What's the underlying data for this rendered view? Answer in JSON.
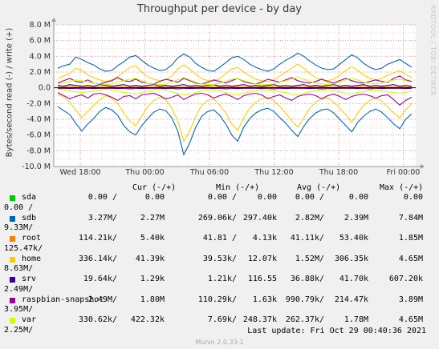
{
  "chart_data": {
    "type": "line",
    "title": "Throughput per device - by day",
    "ylabel": "Bytes/second read (-) / write (+)",
    "ylim": [
      -10,
      8
    ],
    "yunit": "M",
    "yticks": [
      "8.0 M",
      "6.0 M",
      "4.0 M",
      "2.0 M",
      "0.0",
      "-2.0 M",
      "-4.0 M",
      "-6.0 M",
      "-8.0 M",
      "-10.0 M"
    ],
    "xticks": [
      "Wed 18:00",
      "Thu 00:00",
      "Thu 06:00",
      "Thu 12:00",
      "Thu 18:00",
      "Fri 00:00"
    ],
    "grid": true,
    "legend_position": "bottom",
    "series": [
      {
        "name": "sda",
        "color": "#00cc00",
        "write": [
          0,
          0,
          0,
          0,
          0,
          0,
          0,
          0,
          0,
          0,
          0,
          0,
          0,
          0,
          0,
          0,
          0,
          0,
          0,
          0,
          0,
          0,
          0,
          0,
          0,
          0,
          0,
          0,
          0,
          0,
          0,
          0,
          0,
          0,
          0,
          0,
          0,
          0,
          0,
          0,
          0,
          0,
          0,
          0,
          0,
          0,
          0,
          0,
          0,
          0,
          0,
          0,
          0,
          0,
          0,
          0,
          0,
          0,
          0,
          0
        ],
        "read": [
          0,
          0,
          0,
          0,
          0,
          0,
          0,
          0,
          0,
          0,
          0,
          0,
          0,
          0,
          0,
          0,
          0,
          0,
          0,
          0,
          0,
          0,
          0,
          0,
          0,
          0,
          0,
          0,
          0,
          0,
          0,
          0,
          0,
          0,
          0,
          0,
          0,
          0,
          0,
          0,
          0,
          0,
          0,
          0,
          0,
          0,
          0,
          0,
          0,
          0,
          0,
          0,
          0,
          0,
          0,
          0,
          0,
          0,
          0,
          0
        ]
      },
      {
        "name": "sdb",
        "color": "#0066b3",
        "write": [
          2.5,
          2.8,
          3.0,
          3.9,
          3.6,
          3.2,
          2.9,
          2.4,
          2.1,
          2.2,
          2.8,
          3.3,
          3.9,
          4.1,
          3.5,
          2.9,
          2.5,
          2.2,
          2.3,
          2.9,
          3.8,
          4.3,
          3.9,
          3.1,
          2.6,
          2.2,
          2.1,
          2.6,
          3.2,
          3.8,
          4.0,
          3.6,
          3.0,
          2.6,
          2.3,
          2.1,
          2.4,
          3.0,
          3.5,
          3.9,
          4.4,
          4.0,
          3.4,
          2.9,
          2.5,
          2.3,
          2.4,
          3.0,
          3.6,
          4.2,
          3.8,
          3.1,
          2.6,
          2.3,
          2.5,
          3.0,
          3.3,
          3.6,
          3.1,
          2.6
        ],
        "read": [
          -2.4,
          -2.9,
          -3.4,
          -4.5,
          -5.5,
          -4.6,
          -3.9,
          -3.0,
          -2.5,
          -2.8,
          -3.5,
          -4.8,
          -5.6,
          -6.0,
          -4.8,
          -3.9,
          -3.1,
          -2.7,
          -2.9,
          -3.8,
          -5.5,
          -8.5,
          -7.0,
          -5.0,
          -3.6,
          -3.0,
          -2.8,
          -3.5,
          -4.6,
          -6.0,
          -6.8,
          -5.0,
          -3.9,
          -3.2,
          -2.8,
          -2.6,
          -3.0,
          -3.8,
          -4.5,
          -5.4,
          -6.2,
          -4.9,
          -3.9,
          -3.2,
          -2.8,
          -2.7,
          -3.2,
          -4.0,
          -4.8,
          -5.6,
          -4.4,
          -3.6,
          -3.0,
          -2.7,
          -3.1,
          -3.8,
          -4.6,
          -5.2,
          -4.0,
          -3.3
        ]
      },
      {
        "name": "root",
        "color": "#ff8000",
        "write": [
          0.1,
          0.1,
          0.2,
          0.1,
          0.1,
          0.1,
          0.1,
          0.1,
          0.1,
          0.1,
          0.2,
          0.1,
          0.1,
          0.1,
          0.1,
          0.1,
          0.1,
          0.1,
          0.2,
          0.1,
          0.1,
          0.1,
          0.1,
          0.1,
          0.1,
          0.1,
          0.2,
          0.1,
          0.1,
          0.1,
          0.1,
          0.1,
          0.1,
          0.1,
          0.1,
          0.2,
          0.1,
          0.1,
          0.1,
          0.1,
          0.1,
          0.1,
          0.1,
          0.2,
          0.1,
          0.1,
          0.1,
          0.1,
          0.1,
          0.1,
          0.1,
          0.2,
          0.1,
          0.1,
          0.1,
          0.1,
          0.1,
          0.1,
          0.1,
          0.1
        ],
        "read": [
          -0.1,
          -0.1,
          -0.1,
          -0.1,
          -0.2,
          -0.1,
          -0.1,
          -0.1,
          -0.1,
          -0.1,
          -0.1,
          -0.1,
          -0.2,
          -0.1,
          -0.1,
          -0.1,
          -0.1,
          -0.1,
          -0.1,
          -0.1,
          -0.2,
          -0.1,
          -0.1,
          -0.1,
          -0.1,
          -0.1,
          -0.1,
          -0.1,
          -0.2,
          -0.1,
          -0.1,
          -0.1,
          -0.1,
          -0.1,
          -0.1,
          -0.1,
          -0.2,
          -0.1,
          -0.1,
          -0.1,
          -0.1,
          -0.1,
          -0.1,
          -0.1,
          -0.2,
          -0.1,
          -0.1,
          -0.1,
          -0.1,
          -0.1,
          -0.1,
          -0.1,
          -0.2,
          -0.1,
          -0.1,
          -0.1,
          -0.1,
          -0.1,
          -0.1,
          -0.1
        ]
      },
      {
        "name": "home",
        "color": "#ffcc00",
        "write": [
          1.2,
          1.5,
          1.8,
          2.5,
          2.2,
          1.6,
          1.3,
          1.0,
          0.8,
          1.0,
          1.4,
          2.0,
          2.6,
          2.8,
          2.0,
          1.4,
          1.1,
          0.9,
          1.0,
          1.5,
          2.4,
          2.9,
          2.4,
          1.7,
          1.2,
          0.9,
          0.9,
          1.2,
          1.8,
          2.4,
          2.6,
          2.0,
          1.5,
          1.1,
          0.9,
          0.8,
          1.0,
          1.5,
          2.0,
          2.5,
          3.0,
          2.5,
          1.8,
          1.3,
          1.0,
          0.9,
          1.1,
          1.6,
          2.2,
          2.7,
          2.2,
          1.6,
          1.2,
          1.0,
          1.2,
          1.6,
          1.9,
          2.2,
          1.7,
          1.3
        ],
        "read": [
          -0.8,
          -1.2,
          -1.8,
          -2.8,
          -3.8,
          -3.0,
          -2.2,
          -1.5,
          -1.0,
          -1.3,
          -2.0,
          -3.2,
          -4.2,
          -4.8,
          -3.6,
          -2.4,
          -1.6,
          -1.2,
          -1.5,
          -2.6,
          -4.2,
          -6.8,
          -5.5,
          -3.6,
          -2.2,
          -1.6,
          -1.4,
          -2.2,
          -3.2,
          -4.6,
          -5.4,
          -3.8,
          -2.6,
          -1.8,
          -1.4,
          -1.2,
          -1.6,
          -2.4,
          -3.2,
          -4.2,
          -5.0,
          -3.8,
          -2.6,
          -1.8,
          -1.4,
          -1.3,
          -1.8,
          -2.6,
          -3.4,
          -4.4,
          -3.2,
          -2.2,
          -1.6,
          -1.3,
          -1.7,
          -2.4,
          -3.2,
          -3.8,
          -2.8,
          -2.0
        ]
      },
      {
        "name": "srv",
        "color": "#330099",
        "write": [
          0.3,
          0.2,
          0.4,
          0.3,
          0.2,
          0.3,
          0.2,
          0.4,
          0.3,
          0.2,
          0.3,
          0.4,
          0.2,
          0.3,
          0.2,
          0.3,
          0.4,
          0.2,
          0.3,
          0.2,
          0.3,
          0.4,
          0.2,
          0.3,
          0.2,
          0.3,
          0.4,
          0.2,
          0.3,
          0.2,
          0.3,
          0.4,
          0.2,
          0.3,
          0.2,
          0.3,
          0.4,
          0.2,
          0.3,
          0.2,
          0.3,
          0.4,
          0.2,
          0.3,
          0.2,
          0.3,
          0.4,
          0.2,
          0.3,
          0.2,
          0.3,
          0.4,
          0.2,
          0.3,
          0.2,
          0.3,
          0.4,
          0.2,
          0.3,
          0.2
        ],
        "read": [
          -0.05,
          -0.05,
          -0.1,
          -0.05,
          -0.05,
          -0.05,
          -0.1,
          -0.05,
          -0.05,
          -0.05,
          -0.1,
          -0.05,
          -0.05,
          -0.05,
          -0.1,
          -0.05,
          -0.05,
          -0.05,
          -0.1,
          -0.05,
          -0.05,
          -0.05,
          -0.1,
          -0.05,
          -0.05,
          -0.05,
          -0.1,
          -0.05,
          -0.05,
          -0.05,
          -0.1,
          -0.05,
          -0.05,
          -0.05,
          -0.1,
          -0.05,
          -0.05,
          -0.05,
          -0.1,
          -0.05,
          -0.05,
          -0.05,
          -0.1,
          -0.05,
          -0.05,
          -0.05,
          -0.1,
          -0.05,
          -0.05,
          -0.05,
          -0.1,
          -0.05,
          -0.05,
          -0.05,
          -0.1,
          -0.05,
          -0.05,
          -0.05,
          -0.1,
          -0.05
        ]
      },
      {
        "name": "raspbian-snapshot",
        "color": "#990099",
        "write": [
          0.6,
          0.9,
          1.2,
          0.8,
          0.7,
          1.0,
          0.6,
          0.5,
          0.7,
          0.9,
          1.3,
          0.9,
          0.8,
          1.1,
          0.7,
          0.6,
          0.5,
          0.8,
          1.1,
          0.9,
          0.7,
          1.2,
          0.9,
          0.6,
          0.5,
          0.7,
          1.0,
          0.8,
          0.6,
          0.9,
          1.2,
          0.8,
          0.6,
          0.5,
          0.7,
          1.1,
          0.9,
          0.7,
          1.0,
          1.3,
          0.9,
          0.7,
          0.6,
          0.8,
          1.1,
          0.8,
          0.6,
          0.9,
          1.2,
          0.9,
          0.7,
          0.6,
          0.8,
          1.0,
          0.8,
          0.7,
          1.2,
          1.5,
          1.0,
          0.8
        ],
        "read": [
          -0.6,
          -1.0,
          -1.4,
          -1.1,
          -0.9,
          -1.3,
          -0.8,
          -0.7,
          -0.9,
          -1.2,
          -1.6,
          -1.1,
          -1.0,
          -1.4,
          -0.9,
          -0.8,
          -0.7,
          -1.0,
          -1.4,
          -1.2,
          -0.9,
          -1.5,
          -1.1,
          -0.8,
          -0.7,
          -0.9,
          -1.3,
          -1.0,
          -0.8,
          -1.1,
          -1.5,
          -1.0,
          -0.8,
          -0.7,
          -0.9,
          -1.4,
          -1.1,
          -0.9,
          -1.3,
          -1.6,
          -1.1,
          -0.9,
          -0.8,
          -1.0,
          -1.4,
          -1.0,
          -0.8,
          -1.1,
          -1.5,
          -1.1,
          -0.9,
          -0.8,
          -1.0,
          -1.3,
          -1.0,
          -0.9,
          -1.5,
          -2.2,
          -1.6,
          -1.2
        ]
      },
      {
        "name": "var",
        "color": "#ccff00",
        "write": [
          0.5,
          0.6,
          0.8,
          1.0,
          0.9,
          0.7,
          0.6,
          0.5,
          0.4,
          0.5,
          0.7,
          0.9,
          1.1,
          1.2,
          0.9,
          0.6,
          0.5,
          0.4,
          0.5,
          0.7,
          1.0,
          1.3,
          1.0,
          0.7,
          0.5,
          0.4,
          0.4,
          0.6,
          0.8,
          1.1,
          1.2,
          0.9,
          0.7,
          0.5,
          0.4,
          0.4,
          0.5,
          0.7,
          0.9,
          1.1,
          1.4,
          1.1,
          0.8,
          0.6,
          0.5,
          0.4,
          0.5,
          0.7,
          1.0,
          1.2,
          1.0,
          0.7,
          0.6,
          0.5,
          0.6,
          0.8,
          1.0,
          1.1,
          0.9,
          0.7
        ],
        "read": [
          -0.2,
          -0.3,
          -0.4,
          -0.5,
          -0.6,
          -0.5,
          -0.4,
          -0.3,
          -0.2,
          -0.3,
          -0.4,
          -0.6,
          -0.7,
          -0.8,
          -0.6,
          -0.4,
          -0.3,
          -0.2,
          -0.3,
          -0.5,
          -0.7,
          -0.9,
          -0.8,
          -0.6,
          -0.4,
          -0.3,
          -0.3,
          -0.4,
          -0.6,
          -0.8,
          -0.9,
          -0.7,
          -0.5,
          -0.4,
          -0.3,
          -0.3,
          -0.4,
          -0.5,
          -0.6,
          -0.8,
          -0.9,
          -0.7,
          -0.5,
          -0.4,
          -0.3,
          -0.3,
          -0.4,
          -0.5,
          -0.7,
          -0.8,
          -0.6,
          -0.5,
          -0.4,
          -0.3,
          -0.4,
          -0.5,
          -0.6,
          -0.7,
          -0.6,
          -0.4
        ]
      }
    ]
  },
  "legend": {
    "headers": {
      "cur": "Cur (-/+)",
      "min": "Min (-/+)",
      "avg": "Avg (-/+)",
      "max": "Max (-/+)"
    },
    "rows": [
      {
        "name": "sda",
        "color": "#00cc00",
        "cur_r": "0.00 /",
        "cur_w": "0.00",
        "min_r": "0.00 /",
        "min_w": "0.00",
        "avg_r": "0.00 /",
        "avg_w": "0.00",
        "max_r": "0.00 /",
        "max_w": "0.00"
      },
      {
        "name": "sdb",
        "color": "#0066b3",
        "cur_r": "3.27M/",
        "cur_w": "2.27M",
        "min_r": "269.06k/",
        "min_w": "297.40k",
        "avg_r": "2.82M/",
        "avg_w": "2.39M",
        "max_r": "9.33M/",
        "max_w": "7.84M"
      },
      {
        "name": "root",
        "color": "#ff8000",
        "cur_r": "114.21k/",
        "cur_w": "5.40k",
        "min_r": "41.81 /",
        "min_w": "4.13k",
        "avg_r": "41.11k/",
        "avg_w": "53.40k",
        "max_r": "125.47k/",
        "max_w": "1.85M"
      },
      {
        "name": "home",
        "color": "#ffcc00",
        "cur_r": "336.14k/",
        "cur_w": "41.39k",
        "min_r": "39.53k/",
        "min_w": "12.07k",
        "avg_r": "1.52M/",
        "avg_w": "306.35k",
        "max_r": "8.63M/",
        "max_w": "4.65M"
      },
      {
        "name": "srv",
        "color": "#330099",
        "cur_r": "19.64k/",
        "cur_w": "1.29k",
        "min_r": "1.21k/",
        "min_w": "116.55",
        "avg_r": "36.88k/",
        "avg_w": "41.70k",
        "max_r": "2.49M/",
        "max_w": "607.20k"
      },
      {
        "name": "raspbian-snapshot",
        "color": "#990099",
        "cur_r": "2.49M/",
        "cur_w": "1.80M",
        "min_r": "110.29k/",
        "min_w": "1.63k",
        "avg_r": "990.79k/",
        "avg_w": "214.47k",
        "max_r": "3.95M/",
        "max_w": "3.89M"
      },
      {
        "name": "var",
        "color": "#ccff00",
        "cur_r": "330.62k/",
        "cur_w": "422.32k",
        "min_r": "7.69k/",
        "min_w": "248.37k",
        "avg_r": "262.37k/",
        "avg_w": "1.78M",
        "max_r": "2.25M/",
        "max_w": "4.65M"
      }
    ]
  },
  "last_update": "Last update:  Fri Oct 29 00:40:36 2021",
  "footer": "Munin 2.0.33-1",
  "brand": "RRDTOOL / TOBI OETIKER"
}
